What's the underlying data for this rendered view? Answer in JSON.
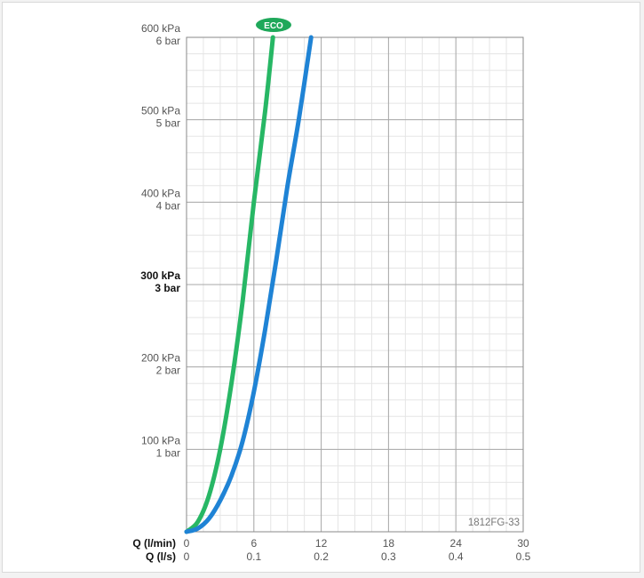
{
  "chart_data": {
    "type": "line",
    "figure_code": "1812FG-33",
    "badge_label": "ECO",
    "x_axis": {
      "primary_label": "Q (l/min)",
      "secondary_label": "Q (l/s)",
      "range": [
        0,
        30
      ],
      "ticks": [
        {
          "value": 0,
          "label": "0",
          "secondary_label": "0"
        },
        {
          "value": 6,
          "label": "6",
          "secondary_label": "0.1"
        },
        {
          "value": 12,
          "label": "12",
          "secondary_label": "0.2"
        },
        {
          "value": 18,
          "label": "18",
          "secondary_label": "0.3"
        },
        {
          "value": 24,
          "label": "24",
          "secondary_label": "0.4"
        },
        {
          "value": 30,
          "label": "30",
          "secondary_label": "0.5"
        }
      ]
    },
    "y_axis": {
      "range": [
        0,
        600
      ],
      "unit_primary": "kPa",
      "unit_secondary": "bar",
      "ticks": [
        {
          "value": 100,
          "label_kpa": "100 kPa",
          "label_bar": "1 bar",
          "bold": false
        },
        {
          "value": 200,
          "label_kpa": "200 kPa",
          "label_bar": "2 bar",
          "bold": false
        },
        {
          "value": 300,
          "label_kpa": "300 kPa",
          "label_bar": "3 bar",
          "bold": true
        },
        {
          "value": 400,
          "label_kpa": "400 kPa",
          "label_bar": "4 bar",
          "bold": false
        },
        {
          "value": 500,
          "label_kpa": "500 kPa",
          "label_bar": "5 bar",
          "bold": false
        },
        {
          "value": 600,
          "label_kpa": "600 kPa",
          "label_bar": "6 bar",
          "bold": false
        }
      ]
    },
    "grid": true,
    "series": [
      {
        "name": "ECO",
        "color": "#27b765",
        "x": [
          0,
          1,
          2,
          3,
          4,
          5,
          6,
          7,
          7.7
        ],
        "y": [
          0,
          12,
          44,
          100,
          180,
          280,
          400,
          510,
          600
        ]
      },
      {
        "color": "#1f83d5",
        "x": [
          0,
          1,
          2,
          3,
          4,
          5,
          6,
          7,
          8,
          9,
          10,
          11.1
        ],
        "y": [
          0,
          4,
          16,
          38,
          68,
          110,
          170,
          245,
          330,
          420,
          500,
          600
        ]
      }
    ]
  }
}
